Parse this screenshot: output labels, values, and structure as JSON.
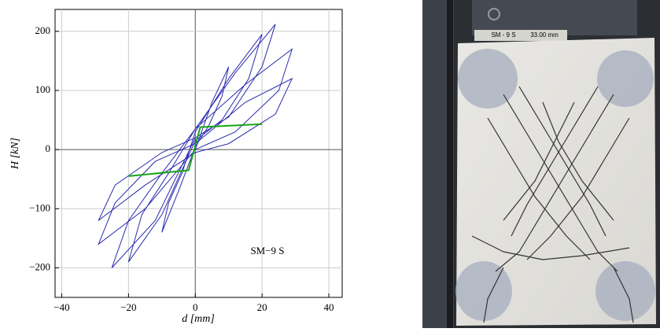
{
  "chart_data": {
    "type": "line",
    "x_label": "d [mm]",
    "y_label": "H [kN]",
    "annotation": "SM−9 S",
    "xlim": [
      -42,
      44
    ],
    "ylim": [
      -250,
      237
    ],
    "xticks": [
      {
        "value": -40,
        "label": "−40"
      },
      {
        "value": -20,
        "label": "−20"
      },
      0,
      20,
      40
    ],
    "yticks": [
      {
        "value": -200,
        "label": "−200"
      },
      {
        "value": -100,
        "label": "−100"
      },
      0,
      100,
      200
    ],
    "grid": true,
    "series": [
      {
        "color": "#2a2ab0",
        "x": [
          0,
          5,
          10,
          8,
          4,
          0,
          -5,
          -10,
          -8,
          -4,
          0,
          10,
          20,
          16,
          8,
          0,
          -10,
          -20,
          -16,
          -8,
          0,
          12,
          24,
          20,
          10,
          0,
          -12,
          -25,
          -20,
          -10,
          0,
          15,
          29,
          25,
          12,
          0,
          -15,
          -29,
          -24,
          -12,
          0,
          15,
          29,
          24,
          10,
          0,
          -15,
          -29,
          -24,
          -10,
          0
        ],
        "values": [
          0,
          80,
          140,
          90,
          40,
          5,
          -70,
          -140,
          -90,
          -40,
          30,
          120,
          195,
          120,
          50,
          15,
          -110,
          -190,
          -110,
          -40,
          35,
          130,
          212,
          140,
          55,
          20,
          -120,
          -200,
          -120,
          -40,
          35,
          110,
          170,
          100,
          30,
          0,
          -100,
          -160,
          -90,
          -20,
          10,
          80,
          120,
          60,
          10,
          -5,
          -60,
          -120,
          -60,
          -5,
          20
        ]
      },
      {
        "color": "#1aa51a",
        "x": [
          -20,
          -2,
          1.5,
          20
        ],
        "values": [
          -45,
          -35,
          38,
          43
        ]
      }
    ]
  },
  "photo": {
    "labels": [
      "SM - 9 S",
      "33.00 mm"
    ]
  }
}
